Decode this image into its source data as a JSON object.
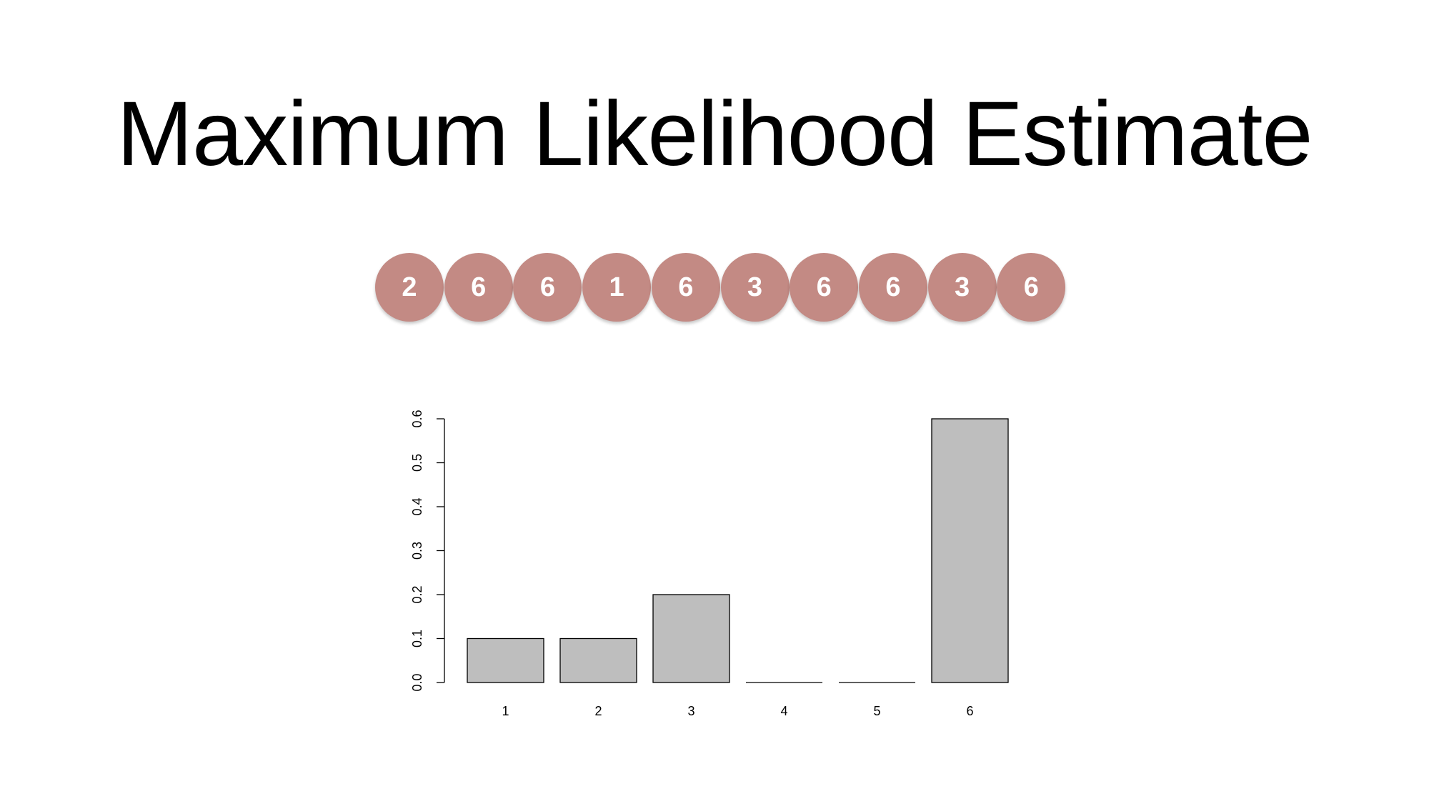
{
  "slide": {
    "title": "Maximum Likelihood Estimate"
  },
  "rolls": {
    "values": [
      "2",
      "6",
      "6",
      "1",
      "6",
      "3",
      "6",
      "6",
      "3",
      "6"
    ],
    "color": "#c38a84",
    "text_color": "#ffffff"
  },
  "chart_data": {
    "type": "bar",
    "categories": [
      "1",
      "2",
      "3",
      "4",
      "5",
      "6"
    ],
    "values": [
      0.1,
      0.1,
      0.2,
      0.0,
      0.0,
      0.6
    ],
    "title": "",
    "xlabel": "",
    "ylabel": "",
    "ylim": [
      0,
      0.6
    ],
    "yticks": [
      "0.0",
      "0.1",
      "0.2",
      "0.3",
      "0.4",
      "0.5",
      "0.6"
    ],
    "bar_fill": "#bebebe",
    "bar_stroke": "#000000",
    "grid": false,
    "legend": "none"
  }
}
